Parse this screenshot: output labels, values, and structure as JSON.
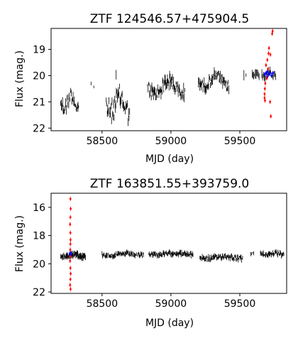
{
  "chart_data": [
    {
      "type": "scatter",
      "title": "ZTF 124546.57+475904.5",
      "xlabel": "MJD (day)",
      "ylabel": "Flux (mag.)",
      "xlim": [
        58130,
        59840
      ],
      "ylim": [
        22.1,
        18.2
      ],
      "y_inverted": true,
      "xticks": [
        58500,
        59000,
        59500
      ],
      "yticks": [
        19,
        20,
        21,
        22
      ],
      "grid": false,
      "series": [
        {
          "color": "#000000",
          "segments": [
            {
              "x": [
                58200,
                58330
              ],
              "y_mid": 20.98,
              "amp": 0.25,
              "scatter": 0.5,
              "n": 30
            },
            {
              "x": [
                58420,
                58440
              ],
              "y_mid": 20.35,
              "amp": 0.05,
              "scatter": 0.2,
              "n": 2
            },
            {
              "x": [
                58530,
                58700
              ],
              "y_mid": 21.1,
              "amp": 0.3,
              "scatter": 0.8,
              "n": 45
            },
            {
              "x": [
                58600,
                58605
              ],
              "y_mid": 20.0,
              "amp": 0.0,
              "scatter": 0.1,
              "n": 1
            },
            {
              "x": [
                58830,
                59100
              ],
              "y_mid": 20.45,
              "amp": 0.25,
              "scatter": 0.5,
              "n": 70
            },
            {
              "x": [
                59200,
                59420
              ],
              "y_mid": 20.2,
              "amp": 0.2,
              "scatter": 0.35,
              "n": 55
            },
            {
              "x": [
                59530,
                59545
              ],
              "y_mid": 20.0,
              "amp": 0.0,
              "scatter": 0.1,
              "n": 2
            },
            {
              "x": [
                59590,
                59640
              ],
              "y_mid": 19.95,
              "amp": 0.05,
              "scatter": 0.15,
              "n": 10
            },
            {
              "x": [
                59660,
                59760
              ],
              "y_mid": 19.95,
              "amp": 0.05,
              "scatter": 0.2,
              "n": 18
            }
          ]
        },
        {
          "color": "#0000ff",
          "points": [
            [
              59680,
              19.95
            ],
            [
              59690,
              19.9
            ],
            [
              59700,
              19.85
            ],
            [
              59710,
              19.95
            ],
            [
              59720,
              19.9
            ],
            [
              59730,
              20.0
            ],
            [
              59740,
              19.9
            ],
            [
              59700,
              20.05
            ]
          ]
        },
        {
          "color": "#ff0000",
          "points": [
            [
              59735,
              18.4
            ],
            [
              59738,
              18.3
            ],
            [
              59712,
              18.95
            ],
            [
              59708,
              19.15
            ],
            [
              59722,
              19.2
            ],
            [
              59700,
              19.4
            ],
            [
              59690,
              19.6
            ],
            [
              59685,
              20.3
            ],
            [
              59682,
              20.5
            ],
            [
              59680,
              20.7
            ],
            [
              59680,
              20.85
            ],
            [
              59683,
              20.95
            ],
            [
              59720,
              21.0
            ],
            [
              59725,
              21.55
            ],
            [
              59695,
              20.1
            ],
            [
              59705,
              19.75
            ]
          ]
        }
      ]
    },
    {
      "type": "scatter",
      "title": "ZTF 163851.55+393759.0",
      "xlabel": "MJD (day)",
      "ylabel": "Flux (mag.)",
      "xlim": [
        58130,
        59840
      ],
      "ylim": [
        22.1,
        15.0
      ],
      "y_inverted": true,
      "xticks": [
        58500,
        59000,
        59500
      ],
      "yticks": [
        16,
        18,
        20,
        22
      ],
      "grid": false,
      "series": [
        {
          "color": "#000000",
          "segments": [
            {
              "x": [
                58200,
                58380
              ],
              "y_mid": 19.4,
              "amp": 0.1,
              "scatter": 0.35,
              "n": 90
            },
            {
              "x": [
                58500,
                58800
              ],
              "y_mid": 19.35,
              "amp": 0.05,
              "scatter": 0.25,
              "n": 80
            },
            {
              "x": [
                58840,
                59160
              ],
              "y_mid": 19.3,
              "amp": 0.05,
              "scatter": 0.25,
              "n": 90
            },
            {
              "x": [
                59210,
                59520
              ],
              "y_mid": 19.55,
              "amp": 0.08,
              "scatter": 0.3,
              "n": 90
            },
            {
              "x": [
                59580,
                59600
              ],
              "y_mid": 19.25,
              "amp": 0.0,
              "scatter": 0.15,
              "n": 4
            },
            {
              "x": [
                59650,
                59820
              ],
              "y_mid": 19.3,
              "amp": 0.05,
              "scatter": 0.25,
              "n": 50
            }
          ]
        },
        {
          "color": "#0000ff",
          "points": [
            [
              58265,
              19.3
            ],
            [
              58270,
              19.2
            ],
            [
              58275,
              19.35
            ]
          ]
        },
        {
          "color": "#ff0000",
          "points": [
            [
              58270,
              15.4
            ],
            [
              58272,
              16.1
            ],
            [
              58270,
              16.7
            ],
            [
              58268,
              17.2
            ],
            [
              58270,
              17.8
            ],
            [
              58271,
              18.3
            ],
            [
              58270,
              18.6
            ],
            [
              58269,
              19.0
            ],
            [
              58270,
              19.5
            ],
            [
              58268,
              19.8
            ],
            [
              58270,
              20.3
            ],
            [
              58272,
              20.7
            ],
            [
              58270,
              21.1
            ],
            [
              58268,
              21.5
            ],
            [
              58271,
              21.8
            ]
          ]
        }
      ]
    }
  ]
}
